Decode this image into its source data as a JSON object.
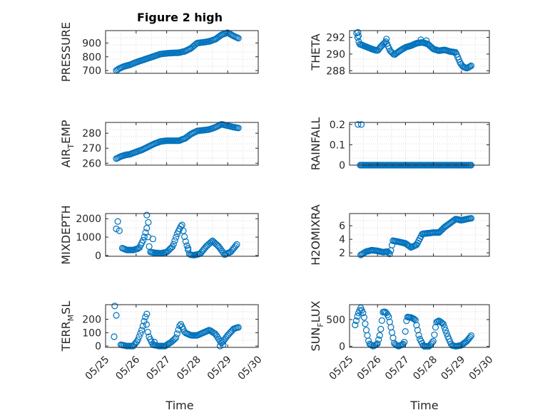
{
  "figure": {
    "title": "Figure 2 high",
    "xlabel_left": "Time",
    "xlabel_right": "Time"
  },
  "colors": {
    "marker": "#0072BD",
    "grid": "#d9d9d9",
    "axis": "#262626"
  },
  "chart_data": [
    {
      "id": "pressure",
      "type": "scatter",
      "column": "left",
      "row": 0,
      "ylabel": "PRESSURE",
      "title": "Figure 2 high",
      "ylim": [
        680,
        990
      ],
      "yticks": [
        700,
        800,
        900
      ],
      "ytick_labels": [
        "700",
        "800",
        "900"
      ],
      "xlim": [
        0,
        5
      ],
      "xtick_labels": [],
      "grid": "on",
      "anchors": [
        [
          0.35,
          700
        ],
        [
          0.45,
          715
        ],
        [
          0.6,
          730
        ],
        [
          0.8,
          742
        ],
        [
          1.0,
          760
        ],
        [
          1.2,
          775
        ],
        [
          1.4,
          790
        ],
        [
          1.6,
          805
        ],
        [
          1.8,
          820
        ],
        [
          2.0,
          825
        ],
        [
          2.2,
          828
        ],
        [
          2.4,
          830
        ],
        [
          2.6,
          840
        ],
        [
          2.8,
          862
        ],
        [
          3.0,
          900
        ],
        [
          3.2,
          905
        ],
        [
          3.4,
          912
        ],
        [
          3.6,
          928
        ],
        [
          3.8,
          960
        ],
        [
          4.0,
          975
        ],
        [
          4.2,
          950
        ],
        [
          4.35,
          935
        ]
      ]
    },
    {
      "id": "theta",
      "type": "scatter",
      "column": "right",
      "row": 0,
      "ylabel": "THETA",
      "ylim": [
        287.7,
        292.8
      ],
      "yticks": [
        288,
        290,
        292
      ],
      "ytick_labels": [
        "288",
        "290",
        "292"
      ],
      "xlim": [
        0,
        5
      ],
      "xtick_labels": [],
      "grid": "on",
      "anchors": [
        [
          0.25,
          292.5
        ],
        [
          0.35,
          291.2
        ],
        [
          0.5,
          291.0
        ],
        [
          0.65,
          290.8
        ],
        [
          0.8,
          290.6
        ],
        [
          1.0,
          290.4
        ],
        [
          1.15,
          291.0
        ],
        [
          1.3,
          291.5
        ],
        [
          1.45,
          290.4
        ],
        [
          1.6,
          289.9
        ],
        [
          1.8,
          290.4
        ],
        [
          2.0,
          290.8
        ],
        [
          2.2,
          291.0
        ],
        [
          2.4,
          291.3
        ],
        [
          2.6,
          291.4
        ],
        [
          2.8,
          291.2
        ],
        [
          3.0,
          290.6
        ],
        [
          3.2,
          290.4
        ],
        [
          3.4,
          290.5
        ],
        [
          3.6,
          290.3
        ],
        [
          3.8,
          290.2
        ],
        [
          3.95,
          289.0
        ],
        [
          4.05,
          288.5
        ],
        [
          4.2,
          288.3
        ],
        [
          4.35,
          288.6
        ]
      ],
      "extra_points": [
        [
          0.3,
          292.6
        ],
        [
          0.32,
          292.2
        ],
        [
          1.32,
          291.8
        ],
        [
          2.55,
          291.7
        ],
        [
          2.75,
          291.6
        ]
      ]
    },
    {
      "id": "air_temp",
      "type": "scatter",
      "column": "left",
      "row": 1,
      "ylabel": "AIR_TEMP",
      "ylim": [
        258.7,
        287.2
      ],
      "yticks": [
        260,
        270,
        280
      ],
      "ytick_labels": [
        "260",
        "270",
        "280"
      ],
      "xlim": [
        0,
        5
      ],
      "xtick_labels": [],
      "grid": "on",
      "anchors": [
        [
          0.35,
          263
        ],
        [
          0.5,
          264.5
        ],
        [
          0.65,
          265.5
        ],
        [
          0.8,
          266
        ],
        [
          1.0,
          267.5
        ],
        [
          1.2,
          269
        ],
        [
          1.4,
          271
        ],
        [
          1.6,
          273
        ],
        [
          1.8,
          274.5
        ],
        [
          2.0,
          275
        ],
        [
          2.2,
          275
        ],
        [
          2.4,
          275
        ],
        [
          2.6,
          276.5
        ],
        [
          2.8,
          279.5
        ],
        [
          3.0,
          281.5
        ],
        [
          3.2,
          282
        ],
        [
          3.4,
          282.5
        ],
        [
          3.6,
          284
        ],
        [
          3.8,
          286
        ],
        [
          4.0,
          285
        ],
        [
          4.2,
          284
        ],
        [
          4.35,
          283.5
        ]
      ]
    },
    {
      "id": "rainfall",
      "type": "scatter",
      "column": "right",
      "row": 1,
      "ylabel": "RAINFALL",
      "ylim": [
        0,
        0.21
      ],
      "yticks": [
        0,
        0.1,
        0.2
      ],
      "ytick_labels": [
        "0",
        "0.1",
        "0.2"
      ],
      "xlim": [
        0,
        5
      ],
      "xtick_labels": [],
      "grid": "on",
      "anchors": [
        [
          0.38,
          0
        ],
        [
          4.35,
          0
        ]
      ],
      "extra_points": [
        [
          0.3,
          0.2
        ],
        [
          0.42,
          0.2
        ]
      ]
    },
    {
      "id": "mixdepth",
      "type": "scatter",
      "column": "left",
      "row": 2,
      "ylabel": "MIXDEPTH",
      "ylim": [
        -40,
        2280
      ],
      "yticks": [
        0,
        1000,
        2000
      ],
      "ytick_labels": [
        "0",
        "1000",
        "2000"
      ],
      "xlim": [
        0,
        5
      ],
      "xtick_labels": [],
      "grid": "on",
      "anchors": [
        [
          0.55,
          400
        ],
        [
          0.7,
          300
        ],
        [
          0.9,
          300
        ],
        [
          1.1,
          400
        ],
        [
          1.25,
          900
        ],
        [
          1.35,
          1500
        ],
        [
          1.45,
          200
        ],
        [
          1.6,
          150
        ],
        [
          1.8,
          120
        ],
        [
          2.0,
          180
        ],
        [
          2.2,
          500
        ],
        [
          2.35,
          1200
        ],
        [
          2.5,
          1700
        ],
        [
          2.6,
          900
        ],
        [
          2.75,
          50
        ],
        [
          2.9,
          20
        ],
        [
          3.1,
          100
        ],
        [
          3.3,
          500
        ],
        [
          3.5,
          800
        ],
        [
          3.7,
          500
        ],
        [
          3.9,
          50
        ],
        [
          4.1,
          200
        ],
        [
          4.3,
          600
        ]
      ],
      "extra_points": [
        [
          0.35,
          1450
        ],
        [
          0.4,
          1850
        ],
        [
          0.45,
          1350
        ],
        [
          1.35,
          2200
        ],
        [
          1.4,
          1800
        ],
        [
          1.55,
          900
        ],
        [
          2.7,
          400
        ]
      ]
    },
    {
      "id": "h2omixra",
      "type": "scatter",
      "column": "right",
      "row": 2,
      "ylabel": "H2OMIXRA",
      "ylim": [
        1.5,
        7.8
      ],
      "yticks": [
        2,
        4,
        6
      ],
      "ytick_labels": [
        "2",
        "4",
        "6"
      ],
      "xlim": [
        0,
        5
      ],
      "xtick_labels": [],
      "grid": "on",
      "anchors": [
        [
          0.4,
          1.7
        ],
        [
          0.6,
          2.2
        ],
        [
          0.8,
          2.4
        ],
        [
          1.0,
          2.3
        ],
        [
          1.2,
          2.1
        ],
        [
          1.35,
          2.2
        ],
        [
          1.45,
          1.8
        ],
        [
          1.55,
          3.8
        ],
        [
          1.8,
          3.6
        ],
        [
          2.0,
          3.4
        ],
        [
          2.2,
          2.8
        ],
        [
          2.4,
          3.2
        ],
        [
          2.6,
          4.8
        ],
        [
          2.8,
          4.9
        ],
        [
          3.0,
          5.0
        ],
        [
          3.2,
          5.0
        ],
        [
          3.4,
          5.8
        ],
        [
          3.6,
          6.4
        ],
        [
          3.8,
          7.0
        ],
        [
          4.0,
          6.8
        ],
        [
          4.2,
          7.0
        ],
        [
          4.35,
          7.1
        ]
      ]
    },
    {
      "id": "terr_msl",
      "type": "scatter",
      "column": "left",
      "row": 3,
      "ylabel": "TERR_MSL",
      "ylim": [
        -10,
        310
      ],
      "yticks": [
        0,
        100,
        200
      ],
      "ytick_labels": [
        "0",
        "100",
        "200"
      ],
      "xlim": [
        0,
        5
      ],
      "xtick_labels": [
        "05/25",
        "05/26",
        "05/27",
        "05/28",
        "05/29",
        "05/30"
      ],
      "grid": "on",
      "anchors": [
        [
          0.5,
          10
        ],
        [
          0.7,
          0
        ],
        [
          0.9,
          0
        ],
        [
          1.05,
          40
        ],
        [
          1.2,
          130
        ],
        [
          1.3,
          220
        ],
        [
          1.4,
          80
        ],
        [
          1.55,
          10
        ],
        [
          1.75,
          0
        ],
        [
          1.95,
          0
        ],
        [
          2.15,
          30
        ],
        [
          2.3,
          60
        ],
        [
          2.45,
          170
        ],
        [
          2.6,
          100
        ],
        [
          2.8,
          80
        ],
        [
          3.0,
          80
        ],
        [
          3.2,
          100
        ],
        [
          3.4,
          120
        ],
        [
          3.6,
          90
        ],
        [
          3.8,
          20
        ],
        [
          4.0,
          80
        ],
        [
          4.2,
          130
        ],
        [
          4.35,
          140
        ]
      ],
      "extra_points": [
        [
          0.3,
          300
        ],
        [
          0.35,
          230
        ],
        [
          0.28,
          70
        ],
        [
          1.35,
          240
        ],
        [
          1.6,
          30
        ],
        [
          3.75,
          0
        ],
        [
          3.85,
          10
        ]
      ]
    },
    {
      "id": "sun_flux",
      "type": "scatter",
      "column": "right",
      "row": 3,
      "ylabel": "SUN_FLUX",
      "ylim": [
        -20,
        780
      ],
      "yticks": [
        0,
        500
      ],
      "ytick_labels": [
        "0",
        "500"
      ],
      "xlim": [
        0,
        5
      ],
      "xtick_labels": [
        "05/25",
        "05/26",
        "05/27",
        "05/28",
        "05/29",
        "05/30"
      ],
      "grid": "on",
      "anchors": [
        [
          0.2,
          400
        ],
        [
          0.3,
          600
        ],
        [
          0.4,
          720
        ],
        [
          0.5,
          600
        ],
        [
          0.6,
          300
        ],
        [
          0.7,
          50
        ],
        [
          0.85,
          0
        ],
        [
          1.0,
          50
        ],
        [
          1.1,
          250
        ],
        [
          1.2,
          650
        ],
        [
          1.3,
          640
        ],
        [
          1.4,
          550
        ],
        [
          1.5,
          300
        ],
        [
          1.6,
          50
        ],
        [
          1.75,
          0
        ],
        [
          1.95,
          50
        ],
        [
          2.05,
          550
        ],
        [
          2.2,
          540
        ],
        [
          2.35,
          500
        ],
        [
          2.5,
          150
        ],
        [
          2.65,
          0
        ],
        [
          2.85,
          0
        ],
        [
          3.0,
          100
        ],
        [
          3.1,
          450
        ],
        [
          3.2,
          480
        ],
        [
          3.35,
          420
        ],
        [
          3.5,
          200
        ],
        [
          3.65,
          20
        ],
        [
          3.8,
          0
        ],
        [
          4.0,
          20
        ],
        [
          4.2,
          100
        ],
        [
          4.35,
          200
        ]
      ]
    }
  ]
}
